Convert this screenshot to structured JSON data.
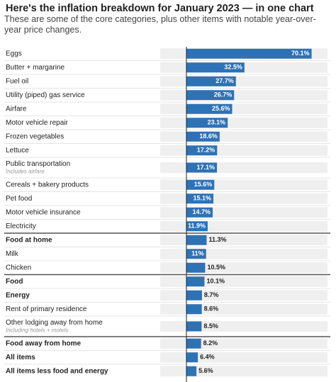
{
  "chart_data": {
    "type": "bar",
    "orientation": "horizontal",
    "title": "Here's the inflation breakdown for January 2023 — in one chart",
    "subtitle": "These are some of the core categories, plus other items with notable year-over-year price changes.",
    "categories": [
      "Eggs",
      "Butter + margarine",
      "Fuel oil",
      "Utility (piped) gas service",
      "Airfare",
      "Motor vehicle repair",
      "Frozen vegetables",
      "Lettuce",
      "Public transportation",
      "Cereals + bakery products",
      "Pet food",
      "Motor vehicle insurance",
      "Electricity",
      "Food at home",
      "Milk",
      "Chicken",
      "Food",
      "Energy",
      "Rent of primary residence",
      "Other lodging away from home",
      "Food away from home",
      "All items",
      "All items less food and energy"
    ],
    "notes": [
      null,
      null,
      null,
      null,
      null,
      null,
      null,
      null,
      "Includes airfare",
      null,
      null,
      null,
      null,
      null,
      null,
      null,
      null,
      null,
      null,
      "Including hotels + motels",
      null,
      null,
      null
    ],
    "bold": [
      false,
      false,
      false,
      false,
      false,
      false,
      false,
      false,
      false,
      false,
      false,
      false,
      false,
      true,
      false,
      false,
      true,
      true,
      false,
      false,
      true,
      true,
      true
    ],
    "values": [
      70.1,
      32.5,
      27.7,
      26.7,
      25.6,
      23.1,
      18.6,
      17.2,
      17.1,
      15.6,
      15.1,
      14.7,
      11.9,
      11.3,
      11,
      10.5,
      10.1,
      8.7,
      8.6,
      8.5,
      8.2,
      6.4,
      5.6
    ],
    "value_labels": [
      "70.1%",
      "32.5%",
      "27.7%",
      "26.7%",
      "25.6%",
      "23.1%",
      "18.6%",
      "17.2%",
      "17.1%",
      "15.6%",
      "15.1%",
      "14.7%",
      "11.9%",
      "11.3%",
      "11%",
      "10.5%",
      "10.1%",
      "8.7%",
      "8.6%",
      "8.5%",
      "8.2%",
      "6.4%",
      "5.6%"
    ],
    "color": "#2e72b6",
    "xlim": [
      0,
      79
    ]
  }
}
